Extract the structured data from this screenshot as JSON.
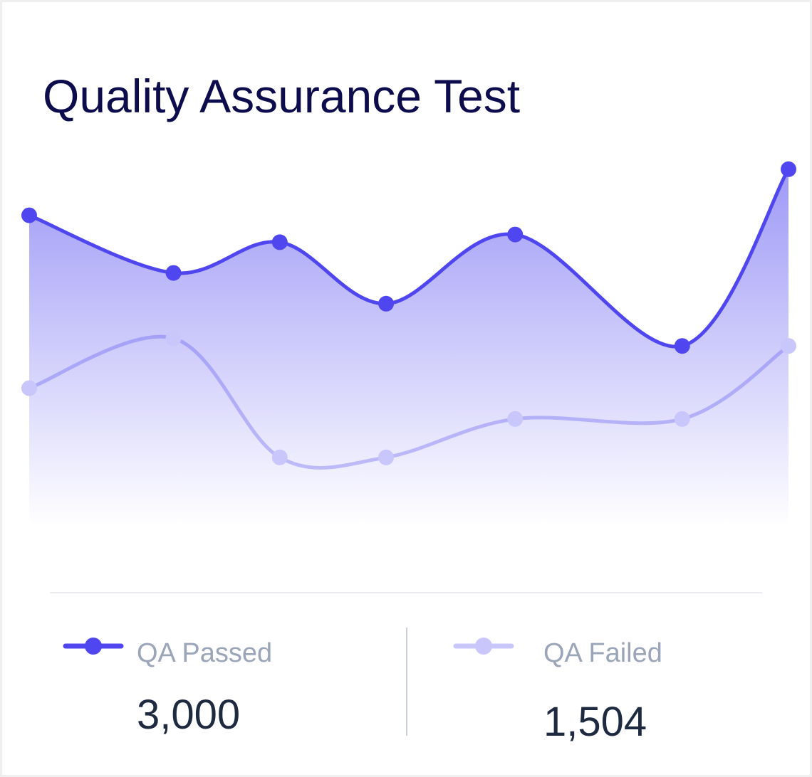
{
  "chart_data": {
    "type": "line",
    "title": "Quality Assurance Test",
    "x": [
      0,
      19,
      33,
      47,
      64,
      86,
      100
    ],
    "xlim": [
      0,
      100
    ],
    "ylim": [
      0,
      100
    ],
    "area": true,
    "series": [
      {
        "name": "QA Passed",
        "color": "#4f46f0",
        "values": [
          81,
          66,
          74,
          58,
          76,
          47,
          93
        ],
        "total": "3,000"
      },
      {
        "name": "QA Failed",
        "color": "#c8c6fa",
        "values": [
          36,
          49,
          18,
          18,
          28,
          28,
          47
        ],
        "total": "1,504"
      }
    ]
  }
}
